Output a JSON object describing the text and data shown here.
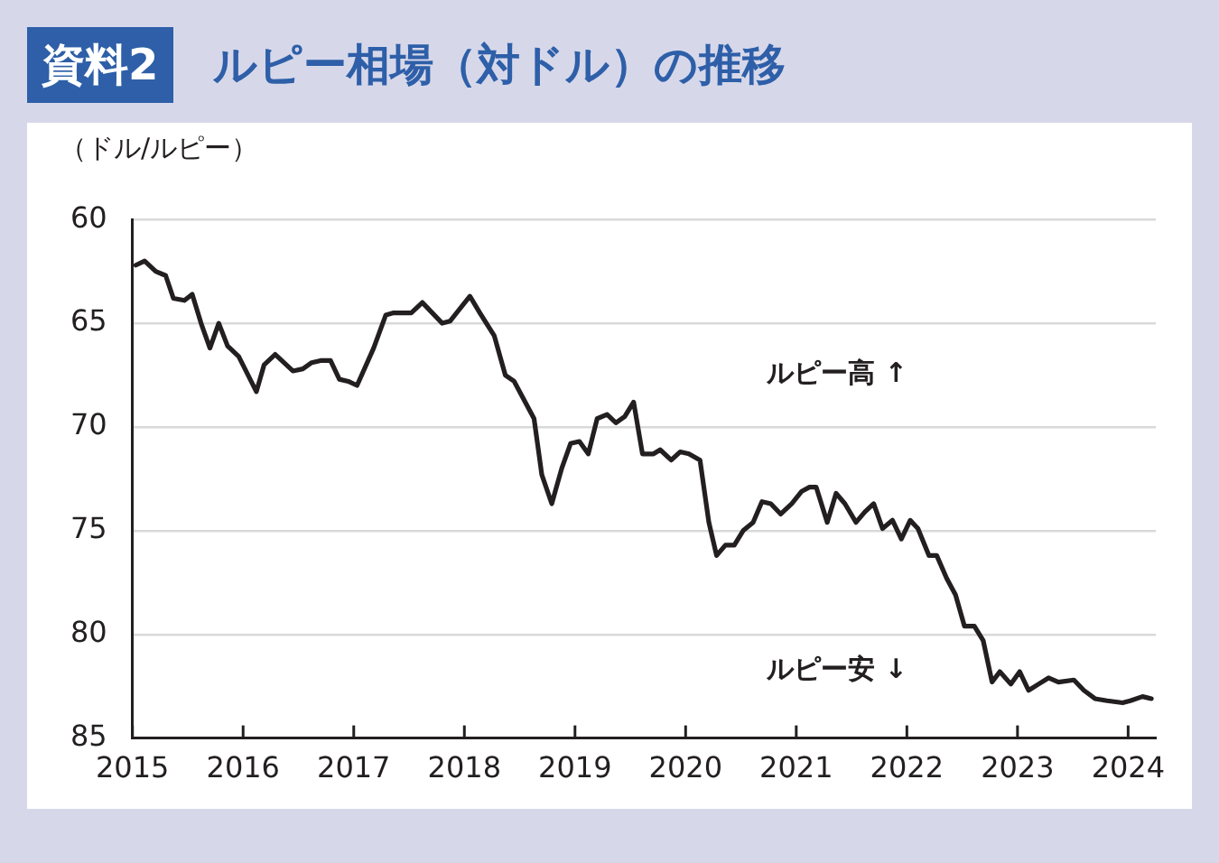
{
  "chart_data": {
    "type": "line",
    "title": "ルピー相場（対ドル）の推移",
    "ylabel": "（ドル/ルピー）",
    "annotations": [
      "資料2",
      "ルピー高 ↑",
      "ルピー安 ↓"
    ],
    "xlim": [
      2015,
      2024.25
    ],
    "xticks": [
      2015,
      2016,
      2017,
      2018,
      2019,
      2020,
      2021,
      2022,
      2023,
      2024
    ],
    "ylim": [
      85,
      60
    ],
    "yticks": [
      60,
      65,
      70,
      75,
      80,
      85
    ],
    "grid": "y",
    "legend": false,
    "marker": "none",
    "line_style": "solid",
    "series": [
      {
        "color": "#231f20",
        "x": [
          2015.03,
          2015.11,
          2015.21,
          2015.3,
          2015.37,
          2015.47,
          2015.54,
          2015.62,
          2015.7,
          2015.78,
          2015.86,
          2015.96,
          2016.12,
          2016.19,
          2016.29,
          2016.45,
          2016.54,
          2016.62,
          2016.7,
          2016.79,
          2016.87,
          2016.95,
          2017.03,
          2017.18,
          2017.29,
          2017.36,
          2017.52,
          2017.62,
          2017.8,
          2017.87,
          2018.05,
          2018.14,
          2018.27,
          2018.37,
          2018.45,
          2018.63,
          2018.7,
          2018.79,
          2018.88,
          2018.96,
          2019.04,
          2019.12,
          2019.2,
          2019.29,
          2019.37,
          2019.45,
          2019.53,
          2019.61,
          2019.71,
          2019.77,
          2019.87,
          2019.95,
          2020.03,
          2020.13,
          2020.21,
          2020.28,
          2020.36,
          2020.44,
          2020.52,
          2020.61,
          2020.69,
          2020.77,
          2020.86,
          2020.96,
          2021.05,
          2021.12,
          2021.18,
          2021.28,
          2021.36,
          2021.44,
          2021.54,
          2021.62,
          2021.7,
          2021.78,
          2021.87,
          2021.95,
          2022.03,
          2022.1,
          2022.2,
          2022.27,
          2022.36,
          2022.44,
          2022.52,
          2022.61,
          2022.69,
          2022.77,
          2022.84,
          2022.94,
          2023.02,
          2023.1,
          2023.19,
          2023.28,
          2023.37,
          2023.51,
          2023.6,
          2023.7,
          2023.81,
          2023.95,
          2024.02,
          2024.13,
          2024.21
        ],
        "values": [
          62.2,
          62.0,
          62.5,
          62.7,
          63.8,
          63.9,
          63.6,
          65.0,
          66.2,
          65.0,
          66.1,
          66.6,
          68.3,
          67.0,
          66.5,
          67.3,
          67.2,
          66.9,
          66.8,
          66.8,
          67.7,
          67.8,
          68.0,
          66.2,
          64.6,
          64.5,
          64.5,
          64.0,
          65.0,
          64.9,
          63.7,
          64.5,
          65.6,
          67.5,
          67.8,
          69.6,
          72.3,
          73.7,
          72.0,
          70.8,
          70.7,
          71.3,
          69.6,
          69.4,
          69.8,
          69.5,
          68.8,
          71.3,
          71.3,
          71.1,
          71.6,
          71.2,
          71.3,
          71.6,
          74.6,
          76.2,
          75.7,
          75.7,
          75.0,
          74.6,
          73.6,
          73.7,
          74.2,
          73.7,
          73.1,
          72.9,
          72.9,
          74.6,
          73.2,
          73.7,
          74.6,
          74.1,
          73.7,
          74.9,
          74.5,
          75.4,
          74.5,
          74.9,
          76.2,
          76.2,
          77.3,
          78.1,
          79.6,
          79.6,
          80.3,
          82.3,
          81.8,
          82.4,
          81.8,
          82.7,
          82.4,
          82.1,
          82.3,
          82.2,
          82.7,
          83.1,
          83.2,
          83.3,
          83.2,
          83.0,
          83.1
        ]
      }
    ]
  }
}
